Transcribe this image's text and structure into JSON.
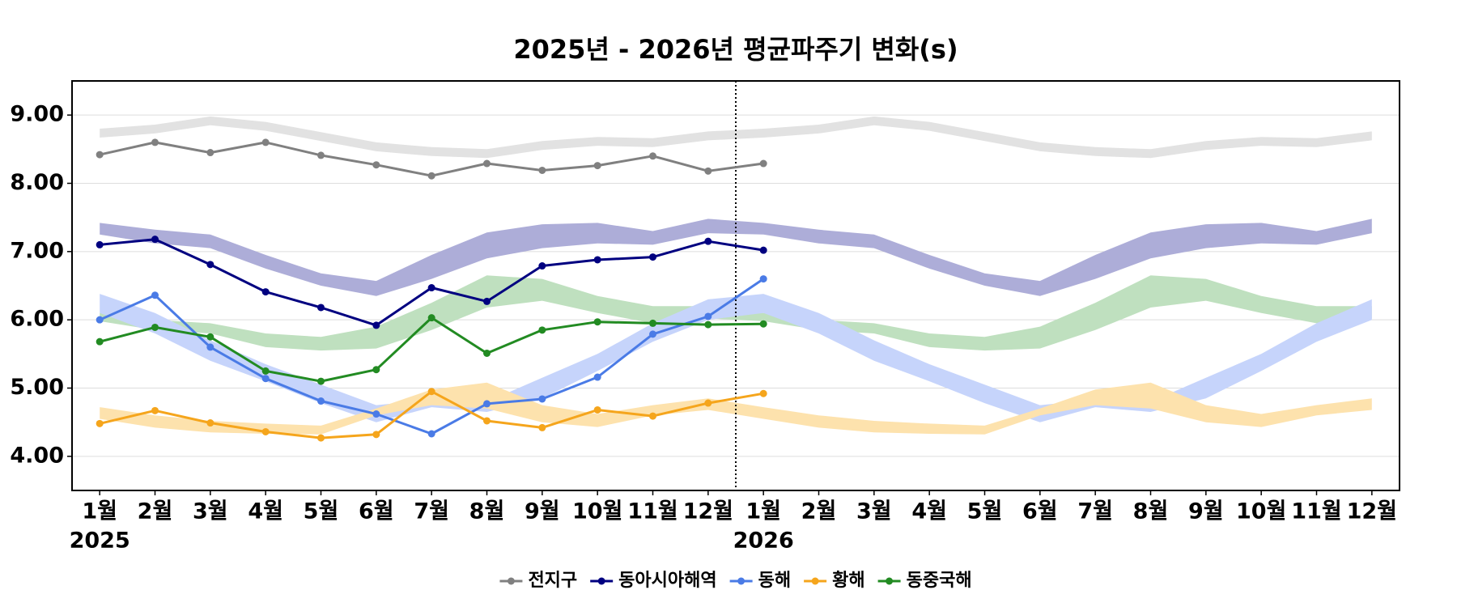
{
  "chart_data": {
    "type": "line",
    "title": "2025년 - 2026년 평균파주기 변화(s)",
    "categories": [
      "1월",
      "2월",
      "3월",
      "4월",
      "5월",
      "6월",
      "7월",
      "8월",
      "9월",
      "10월",
      "11월",
      "12월",
      "1월",
      "2월",
      "3월",
      "4월",
      "5월",
      "6월",
      "7월",
      "8월",
      "9월",
      "10월",
      "11월",
      "12월"
    ],
    "year_labels": [
      "2025",
      null,
      null,
      null,
      null,
      null,
      null,
      null,
      null,
      null,
      null,
      null,
      "2026",
      null,
      null,
      null,
      null,
      null,
      null,
      null,
      null,
      null,
      null,
      null
    ],
    "ylim": [
      3.5,
      9.5
    ],
    "yticks": [
      {
        "value": 4,
        "label": "4.00"
      },
      {
        "value": 5,
        "label": "5.00"
      },
      {
        "value": 6,
        "label": "6.00"
      },
      {
        "value": 7,
        "label": "7.00"
      },
      {
        "value": 8,
        "label": "8.00"
      },
      {
        "value": 9,
        "label": "9.00"
      }
    ],
    "grid": true,
    "legend": "bottom",
    "series": [
      {
        "name": "전지구",
        "color": "#808080",
        "values": [
          8.42,
          8.6,
          8.45,
          8.6,
          8.41,
          8.27,
          8.11,
          8.29,
          8.19,
          8.26,
          8.4,
          8.18,
          8.29,
          null,
          null,
          null,
          null,
          null,
          null,
          null,
          null,
          null,
          null,
          null
        ]
      },
      {
        "name": "동아시아해역",
        "color": "#000080",
        "values": [
          7.1,
          7.18,
          6.81,
          6.41,
          6.18,
          5.92,
          6.47,
          6.27,
          6.79,
          6.88,
          6.92,
          7.15,
          7.02,
          null,
          null,
          null,
          null,
          null,
          null,
          null,
          null,
          null,
          null,
          null
        ]
      },
      {
        "name": "동해",
        "color": "#4a7be6",
        "values": [
          6.0,
          6.36,
          5.6,
          5.14,
          4.81,
          4.62,
          4.33,
          4.77,
          4.84,
          5.16,
          5.79,
          6.05,
          6.6,
          null,
          null,
          null,
          null,
          null,
          null,
          null,
          null,
          null,
          null,
          null
        ]
      },
      {
        "name": "황해",
        "color": "#f5a51c",
        "values": [
          4.48,
          4.67,
          4.49,
          4.36,
          4.27,
          4.32,
          4.95,
          4.52,
          4.42,
          4.68,
          4.59,
          4.78,
          4.92,
          null,
          null,
          null,
          null,
          null,
          null,
          null,
          null,
          null,
          null,
          null
        ]
      },
      {
        "name": "동중국해",
        "color": "#228b22",
        "values": [
          5.68,
          5.89,
          5.75,
          5.25,
          5.1,
          5.27,
          6.03,
          5.51,
          5.85,
          5.97,
          5.95,
          5.93,
          5.94,
          null,
          null,
          null,
          null,
          null,
          null,
          null,
          null,
          null,
          null,
          null
        ]
      }
    ],
    "bands": [
      {
        "color": "#e2e2e2",
        "high": [
          8.8,
          8.86,
          8.98,
          8.9,
          8.75,
          8.6,
          8.53,
          8.5,
          8.62,
          8.68,
          8.66,
          8.76,
          8.8,
          8.86,
          8.98,
          8.9,
          8.75,
          8.6,
          8.53,
          8.5,
          8.62,
          8.68,
          8.66,
          8.76
        ],
        "low": [
          8.67,
          8.73,
          8.85,
          8.77,
          8.62,
          8.47,
          8.4,
          8.37,
          8.49,
          8.55,
          8.53,
          8.63,
          8.67,
          8.73,
          8.85,
          8.77,
          8.62,
          8.47,
          8.4,
          8.37,
          8.49,
          8.55,
          8.53,
          8.63
        ]
      },
      {
        "color": "#adadd8",
        "high": [
          7.42,
          7.32,
          7.25,
          6.95,
          6.68,
          6.57,
          6.95,
          7.28,
          7.4,
          7.42,
          7.3,
          7.48,
          7.42,
          7.32,
          7.25,
          6.95,
          6.68,
          6.57,
          6.95,
          7.28,
          7.4,
          7.42,
          7.3,
          7.48
        ],
        "low": [
          7.25,
          7.12,
          7.05,
          6.75,
          6.5,
          6.35,
          6.6,
          6.9,
          7.05,
          7.12,
          7.1,
          7.27,
          7.25,
          7.12,
          7.05,
          6.75,
          6.5,
          6.35,
          6.6,
          6.9,
          7.05,
          7.12,
          7.1,
          7.27
        ]
      },
      {
        "color": "#bfe0bf",
        "high": [
          6.1,
          6.0,
          5.95,
          5.8,
          5.75,
          5.9,
          6.25,
          6.65,
          6.6,
          6.35,
          6.2,
          6.2,
          6.1,
          6.0,
          5.95,
          5.8,
          5.75,
          5.9,
          6.25,
          6.65,
          6.6,
          6.35,
          6.2,
          6.2
        ],
        "low": [
          5.98,
          5.85,
          5.8,
          5.6,
          5.55,
          5.58,
          5.85,
          6.18,
          6.28,
          6.1,
          5.95,
          6.02,
          5.98,
          5.85,
          5.8,
          5.6,
          5.55,
          5.58,
          5.85,
          6.18,
          6.28,
          6.1,
          5.95,
          6.02
        ]
      },
      {
        "color": "#c6d4fb",
        "high": [
          6.38,
          6.1,
          5.7,
          5.35,
          5.05,
          4.75,
          4.83,
          4.8,
          5.15,
          5.5,
          5.95,
          6.3,
          6.38,
          6.1,
          5.7,
          5.35,
          5.05,
          4.75,
          4.83,
          4.8,
          5.15,
          5.5,
          5.95,
          6.3
        ],
        "low": [
          6.1,
          5.8,
          5.4,
          5.1,
          4.78,
          4.5,
          4.72,
          4.65,
          4.85,
          5.25,
          5.68,
          6.0,
          6.1,
          5.8,
          5.4,
          5.1,
          4.78,
          4.5,
          4.72,
          4.65,
          4.85,
          5.25,
          5.68,
          6.0
        ]
      },
      {
        "color": "#fde2ad",
        "high": [
          4.72,
          4.6,
          4.52,
          4.48,
          4.45,
          4.7,
          4.98,
          5.08,
          4.75,
          4.62,
          4.75,
          4.85,
          4.72,
          4.6,
          4.52,
          4.48,
          4.45,
          4.7,
          4.98,
          5.08,
          4.75,
          4.62,
          4.75,
          4.85
        ],
        "low": [
          4.55,
          4.42,
          4.35,
          4.33,
          4.32,
          4.6,
          4.75,
          4.7,
          4.5,
          4.43,
          4.6,
          4.68,
          4.55,
          4.42,
          4.35,
          4.33,
          4.32,
          4.6,
          4.75,
          4.7,
          4.5,
          4.43,
          4.6,
          4.68
        ]
      }
    ]
  }
}
